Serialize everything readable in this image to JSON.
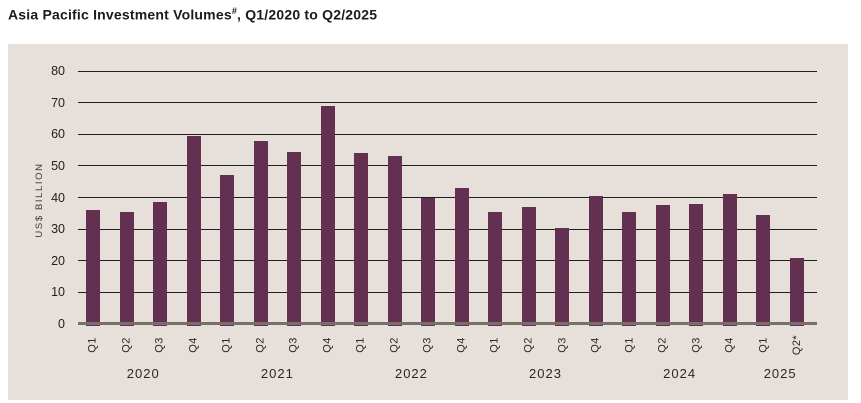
{
  "title": {
    "text": "Asia Pacific Investment Volumes",
    "superscript": "#",
    "suffix": ", Q1/2020 to Q2/2025"
  },
  "chart_data": {
    "type": "bar",
    "title": "Asia Pacific Investment Volumes#, Q1/2020 to Q2/2025",
    "xlabel": "",
    "ylabel": "US$ BILLION",
    "ylim": [
      0,
      80
    ],
    "yticks": [
      0,
      10,
      20,
      30,
      40,
      50,
      60,
      70,
      80
    ],
    "grid": "horizontal",
    "legend_position": "none",
    "bar_color": "#633052",
    "panel_background": "#E6DFDA",
    "categories": [
      "Q1",
      "Q2",
      "Q3",
      "Q4",
      "Q1",
      "Q2",
      "Q3",
      "Q4",
      "Q1",
      "Q2",
      "Q3",
      "Q4",
      "Q1",
      "Q2",
      "Q3",
      "Q4",
      "Q1",
      "Q2",
      "Q3",
      "Q4",
      "Q1",
      "Q2*"
    ],
    "values": [
      36,
      35.5,
      38.5,
      59.5,
      47,
      58,
      54.5,
      69,
      54,
      53,
      40,
      43,
      35.5,
      37,
      30.5,
      40.5,
      35.5,
      37.5,
      38,
      41,
      34.5,
      21
    ],
    "year_groups": [
      {
        "year": "2020",
        "count": 4
      },
      {
        "year": "2021",
        "count": 4
      },
      {
        "year": "2022",
        "count": 4
      },
      {
        "year": "2023",
        "count": 4
      },
      {
        "year": "2024",
        "count": 4
      },
      {
        "year": "2025",
        "count": 2
      }
    ]
  }
}
